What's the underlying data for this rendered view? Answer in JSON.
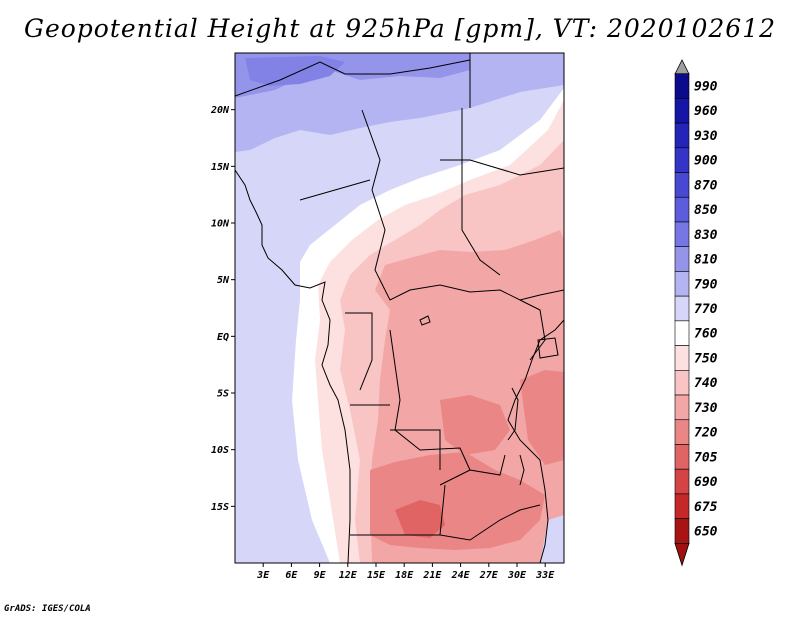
{
  "title": "Geopotential Height at 925hPa [gpm], VT: 2020102612",
  "credit": "GrADS: IGES/COLA",
  "map": {
    "lon_range": [
      0,
      35
    ],
    "lat_range": [
      -20,
      25
    ],
    "lat_ticks": [
      {
        "value": 20,
        "label": "20N"
      },
      {
        "value": 15,
        "label": "15N"
      },
      {
        "value": 10,
        "label": "10N"
      },
      {
        "value": 5,
        "label": "5N"
      },
      {
        "value": 0,
        "label": "EQ"
      },
      {
        "value": -5,
        "label": "5S"
      },
      {
        "value": -10,
        "label": "10S"
      },
      {
        "value": -15,
        "label": "15S"
      }
    ],
    "lon_ticks": [
      {
        "value": 3,
        "label": "3E"
      },
      {
        "value": 6,
        "label": "6E"
      },
      {
        "value": 9,
        "label": "9E"
      },
      {
        "value": 12,
        "label": "12E"
      },
      {
        "value": 15,
        "label": "15E"
      },
      {
        "value": 18,
        "label": "18E"
      },
      {
        "value": 21,
        "label": "21E"
      },
      {
        "value": 24,
        "label": "24E"
      },
      {
        "value": 27,
        "label": "27E"
      },
      {
        "value": 30,
        "label": "30E"
      },
      {
        "value": 33,
        "label": "33E"
      }
    ]
  },
  "colorbar": {
    "levels": [
      {
        "label": "990",
        "color": "#0b0b8c"
      },
      {
        "label": "960",
        "color": "#1616a6"
      },
      {
        "label": "930",
        "color": "#2424b8"
      },
      {
        "label": "900",
        "color": "#3434c6"
      },
      {
        "label": "870",
        "color": "#4848d2"
      },
      {
        "label": "850",
        "color": "#5c5cdc"
      },
      {
        "label": "830",
        "color": "#7676e4"
      },
      {
        "label": "810",
        "color": "#9494ea"
      },
      {
        "label": "790",
        "color": "#b4b4f2"
      },
      {
        "label": "770",
        "color": "#d6d6f8"
      },
      {
        "label": "760",
        "color": "#ffffff"
      },
      {
        "label": "750",
        "color": "#fde0e0"
      },
      {
        "label": "740",
        "color": "#f9c4c4"
      },
      {
        "label": "730",
        "color": "#f2a6a6"
      },
      {
        "label": "720",
        "color": "#ea8686"
      },
      {
        "label": "705",
        "color": "#e06464"
      },
      {
        "label": "690",
        "color": "#d44444"
      },
      {
        "label": "675",
        "color": "#c42828"
      },
      {
        "label": "650",
        "color": "#a81414"
      }
    ],
    "top_arrow_color": "#a0a0a0",
    "bottom_arrow_color": "#a01010"
  },
  "colors": {
    "ocean_light": "#d6d6f8",
    "ocean_mid": "#b4b4f2",
    "ocean_deep": "#9494ea",
    "white_band": "#ffffff",
    "pink_light": "#fde0e0",
    "pink_mid": "#f9c4c4",
    "salmon": "#f2a6a6",
    "red_mid": "#ea8686",
    "red_deep": "#e06464"
  }
}
